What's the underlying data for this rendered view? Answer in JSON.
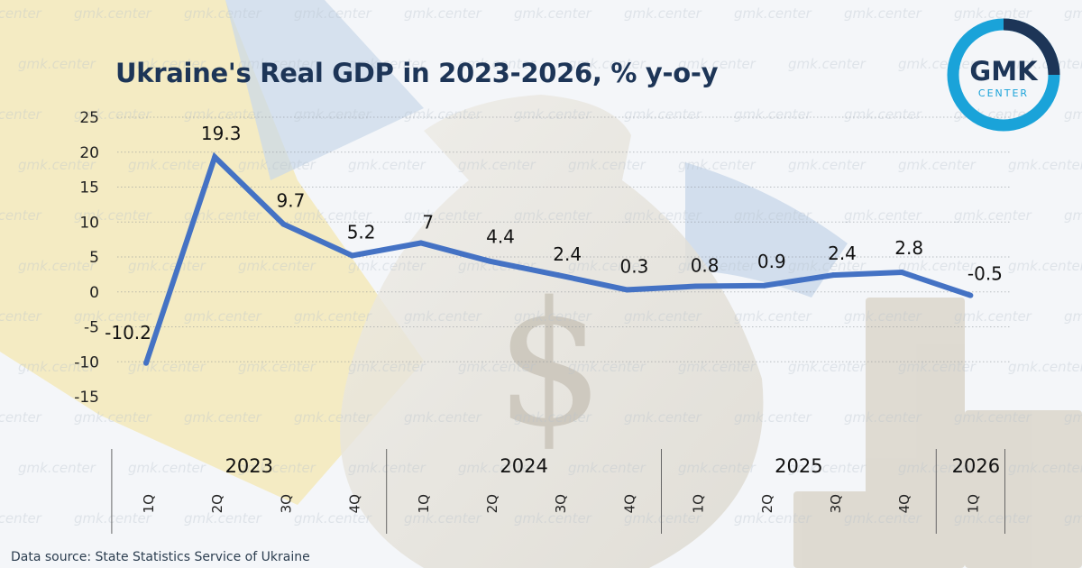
{
  "page": {
    "title": "Ukraine's Real GDP in 2023-2026, % y-o-y",
    "source": "Data source: State Statistics Service of Ukraine",
    "watermark": "gmk.center"
  },
  "logo": {
    "name": "GMK",
    "sub": "CENTER",
    "color_dark": "#1d3557",
    "color_accent": "#1aa3d9"
  },
  "colors": {
    "line": "#4472c4",
    "text": "#1a1a1a",
    "title": "#1d3557"
  },
  "chart_data": {
    "type": "line",
    "categories": [
      "1Q",
      "2Q",
      "3Q",
      "4Q",
      "1Q",
      "2Q",
      "3Q",
      "4Q",
      "1Q",
      "2Q",
      "3Q",
      "4Q",
      "1Q"
    ],
    "groups": [
      {
        "label": "2023",
        "count": 4
      },
      {
        "label": "2024",
        "count": 4
      },
      {
        "label": "2025",
        "count": 4
      },
      {
        "label": "2026",
        "count": 1
      }
    ],
    "series": [
      {
        "values": [
          -10.2,
          19.3,
          9.7,
          5.2,
          7,
          4.4,
          2.4,
          0.3,
          0.8,
          0.9,
          2.4,
          2.8,
          -0.5
        ]
      }
    ],
    "data_labels": [
      "-10.2",
      "19.3",
      "9.7",
      "5.2",
      "7",
      "4.4",
      "2.4",
      "0.3",
      "0.8",
      "0.9",
      "2.4",
      "2.8",
      "-0.5"
    ],
    "yticks": [
      "25",
      "20",
      "15",
      "10",
      "5",
      "0",
      "-5",
      "-10",
      "-15"
    ],
    "ylim": [
      -15,
      25
    ],
    "grid": true,
    "legend": "none"
  }
}
